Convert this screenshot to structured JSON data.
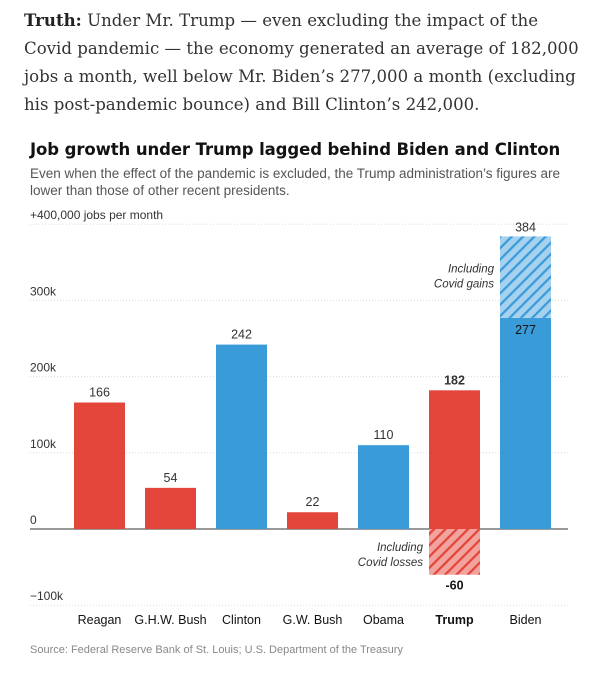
{
  "intro": {
    "lead": "Truth:",
    "text": "Under Mr. Trump — even excluding the impact of the Covid pandemic — the economy generated an average of 182,000 jobs a month, well below Mr. Biden’s 277,000 a month (excluding his post-pandemic bounce) and Bill Clinton’s 242,000."
  },
  "colors": {
    "republican": "#e3453a",
    "democrat": "#3a9bd9",
    "grid": "#dddddd",
    "axis": "#333333"
  },
  "chart_data": {
    "type": "bar",
    "title": "Job growth under Trump lagged behind Biden and Clinton",
    "subtitle": "Even when the effect of the pandemic is excluded, the Trump administration’s figures are lower than those of other recent presidents.",
    "ylabel": "",
    "ylim": [
      -100,
      400
    ],
    "yticks": [
      {
        "value": 400,
        "label": "+400,000 jobs per month"
      },
      {
        "value": 300,
        "label": "300k"
      },
      {
        "value": 200,
        "label": "200k"
      },
      {
        "value": 100,
        "label": "100k"
      },
      {
        "value": 0,
        "label": "0"
      },
      {
        "value": -100,
        "label": "−100k"
      }
    ],
    "grid": true,
    "categories": [
      "Reagan",
      "G.H.W. Bush",
      "Clinton",
      "G.W. Bush",
      "Obama",
      "Trump",
      "Biden"
    ],
    "values": [
      166,
      54,
      242,
      22,
      110,
      182,
      277
    ],
    "value_labels": [
      "166",
      "54",
      "242",
      "22",
      "110",
      "182",
      "277"
    ],
    "party": [
      "republican",
      "republican",
      "democrat",
      "republican",
      "democrat",
      "republican",
      "democrat"
    ],
    "highlight": "Trump",
    "including_covid": [
      {
        "category": "Trump",
        "value": -60,
        "label": "-60",
        "note": [
          "Including",
          "Covid losses"
        ]
      },
      {
        "category": "Biden",
        "value": 384,
        "label": "384",
        "note": [
          "Including",
          "Covid gains"
        ]
      }
    ]
  },
  "source": "Source: Federal Reserve Bank of St. Louis; U.S. Department of the Treasury"
}
